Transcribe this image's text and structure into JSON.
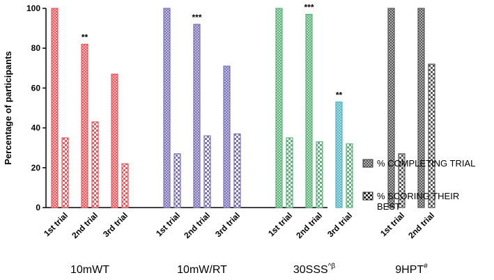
{
  "chart_data": {
    "type": "bar",
    "title": "",
    "xlabel": "",
    "ylabel": "Percentage of participants",
    "ylim": [
      0,
      100
    ],
    "yticks": [
      "0",
      "20",
      "40",
      "60",
      "80",
      "100"
    ],
    "grid": false,
    "legend_position": "right",
    "legend": [
      {
        "label": "% COMPLETING TRIAL",
        "pattern": "fine-check"
      },
      {
        "label": "% SCORING THEIR BEST",
        "pattern": "coarse-check",
        "label_lines": [
          "% SCORING THEIR",
          "BEST"
        ]
      }
    ],
    "groups": [
      {
        "name": "10mWT",
        "superscript": "",
        "color": "#e8585d",
        "trials": [
          {
            "label": "1st trial",
            "completing": 100,
            "best": 35,
            "sig": ""
          },
          {
            "label": "2nd trial",
            "completing": 82,
            "best": 43,
            "sig": "**"
          },
          {
            "label": "3rd trial",
            "completing": 67,
            "best": 22,
            "sig": ""
          }
        ]
      },
      {
        "name": "10mW/RT",
        "superscript": "",
        "color": "#7b72b8",
        "trials": [
          {
            "label": "1st trial",
            "completing": 100,
            "best": 27,
            "sig": ""
          },
          {
            "label": "2nd trial",
            "completing": 92,
            "best": 36,
            "sig": "***"
          },
          {
            "label": "3rd trial",
            "completing": 71,
            "best": 37,
            "sig": ""
          }
        ]
      },
      {
        "name": "30SSS",
        "superscript": "^β",
        "color": "#5cb37a",
        "trials": [
          {
            "label": "1st trial",
            "completing": 100,
            "best": 35,
            "sig": ""
          },
          {
            "label": "2nd trial",
            "completing": 97,
            "best": 33,
            "sig": "***"
          },
          {
            "label": "3rd trial",
            "completing": 53,
            "best": 32,
            "sig": "**",
            "completing_color": "#52b5c4"
          }
        ]
      },
      {
        "name": "9HPT",
        "superscript": "#",
        "color": "#555555",
        "trials": [
          {
            "label": "1st trial",
            "completing": 100,
            "best": 27,
            "sig": ""
          },
          {
            "label": "2nd trial",
            "completing": 100,
            "best": 72,
            "sig": ""
          }
        ]
      }
    ]
  }
}
